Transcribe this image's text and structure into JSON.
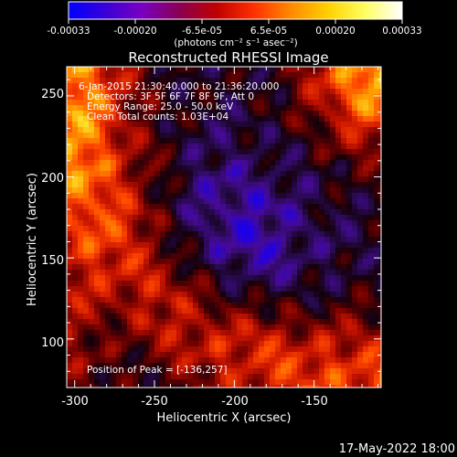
{
  "colorbar": {
    "tick_labels": [
      "-0.00033",
      "-0.00020",
      "-6.5e-05",
      "6.5e-05",
      "0.00020",
      "0.00033"
    ],
    "range": [
      -0.00033,
      0.00033
    ],
    "units_label": "(photons cm⁻² s⁻¹ asec⁻²)",
    "stops": [
      "#0000ff",
      "#3a00d8",
      "#7a00c0",
      "#8a0050",
      "#c00000",
      "#ff3000",
      "#ff8a00",
      "#ffd000",
      "#ffff60",
      "#ffffff"
    ]
  },
  "chart_data": {
    "type": "heatmap",
    "title": "Reconstructed RHESSI Image",
    "xlabel": "Heliocentric X (arcsec)",
    "ylabel": "Heliocentric Y (arcsec)",
    "xlim": [
      -305,
      -108
    ],
    "ylim": [
      70,
      268
    ],
    "x_ticks": [
      -300,
      -250,
      -200,
      -150
    ],
    "y_ticks": [
      100,
      150,
      200,
      250
    ],
    "annotations": [
      "6-Jan-2015 21:30:40.000 to 21:36:20.000",
      "Detectors: 3F 5F 6F 7F 8F 9F, Att 0",
      "Energy Range: 25.0 - 50.0 keV",
      "Clean    Total counts: 1.03E+04"
    ],
    "peak_label": "Position of Peak = [-136,257]",
    "peak_position": [
      -136,
      257
    ]
  },
  "footer": {
    "date": "17-May-2022 18:00"
  }
}
